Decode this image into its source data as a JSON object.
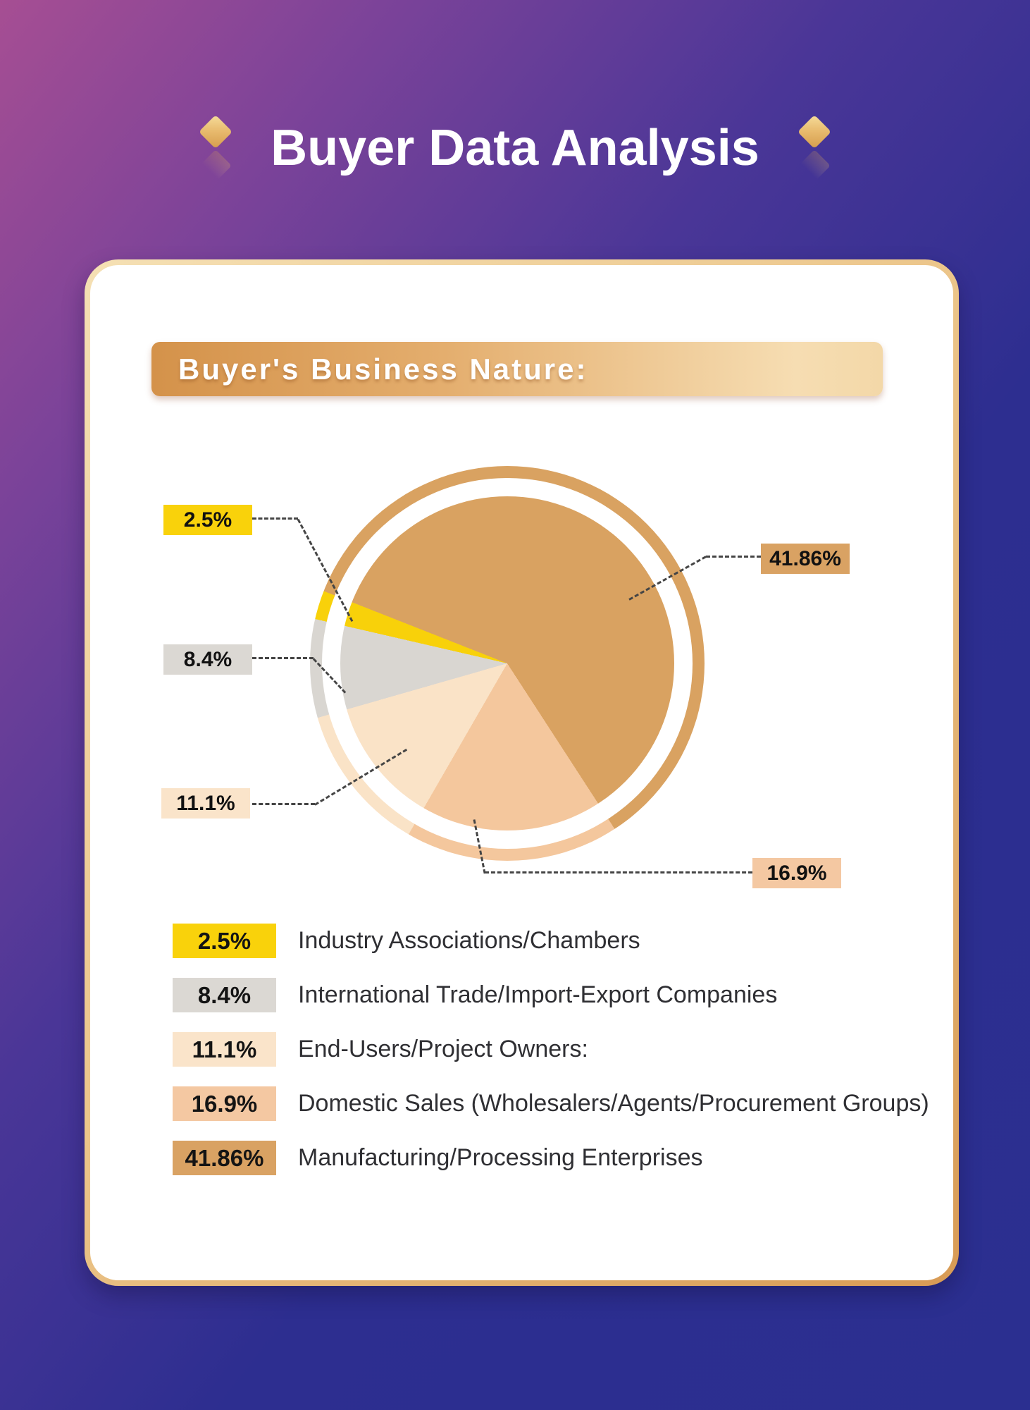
{
  "header": {
    "title": "Buyer Data Analysis"
  },
  "card": {
    "banner": {
      "text": "Buyer's Business Nature:"
    },
    "callouts": [
      {
        "value": "2.5%",
        "color": "#F9D20B"
      },
      {
        "value": "8.4%",
        "color": "#DBD8D3"
      },
      {
        "value": "11.1%",
        "color": "#FAE4CA"
      },
      {
        "value": "41.86%",
        "color": "#D9A263"
      },
      {
        "value": "16.9%",
        "color": "#F4C8A2"
      }
    ],
    "legend": [
      {
        "value": "2.5%",
        "label": "Industry Associations/Chambers",
        "color": "#F9D20B"
      },
      {
        "value": "8.4%",
        "label": "International Trade/Import-Export Companies",
        "color": "#DBD8D3"
      },
      {
        "value": "11.1%",
        "label": "End-Users/Project Owners:",
        "color": "#FAE4CA"
      },
      {
        "value": "16.9%",
        "label": "Domestic Sales (Wholesalers/Agents/Procurement Groups)",
        "color": "#F4C8A2"
      },
      {
        "value": "41.86%",
        "label": "Manufacturing/Processing Enterprises",
        "color": "#D9A263"
      }
    ]
  },
  "chart_data": {
    "type": "pie",
    "title": "Buyer's Business Nature",
    "legend_position": "bottom-left",
    "slices": [
      {
        "label": "Industry Associations/Chambers",
        "value_pct": 2.5,
        "color": "#F8D10A"
      },
      {
        "label": "International Trade/Import-Export Companies",
        "value_pct": 8.4,
        "color": "#D9D6D1"
      },
      {
        "label": "End-Users/Project Owners:",
        "value_pct": 11.1,
        "color": "#FAE3C7"
      },
      {
        "label": "Domestic Sales (Wholesalers/Agents/Procurement Groups)",
        "value_pct": 16.9,
        "color": "#F4C79D"
      },
      {
        "label": "Manufacturing/Processing Enterprises",
        "value_pct": 41.86,
        "color": "#D9A261"
      }
    ],
    "display_segments_conic_deg": [
      {
        "color": "#D9A261",
        "from": 0,
        "to": 147
      },
      {
        "color": "#F4C79D",
        "from": 147,
        "to": 210
      },
      {
        "color": "#FAE3C7",
        "from": 210,
        "to": 254
      },
      {
        "color": "#D9D6D1",
        "from": 254,
        "to": 283
      },
      {
        "color": "#F8D10A",
        "from": 283,
        "to": 291.5
      },
      {
        "color": "#D9A261",
        "from": 291.5,
        "to": 360
      }
    ],
    "notes": "pie drawn with a concentric segmented outer ring; segment angles as drawn (percent values do not sum to 100)"
  }
}
